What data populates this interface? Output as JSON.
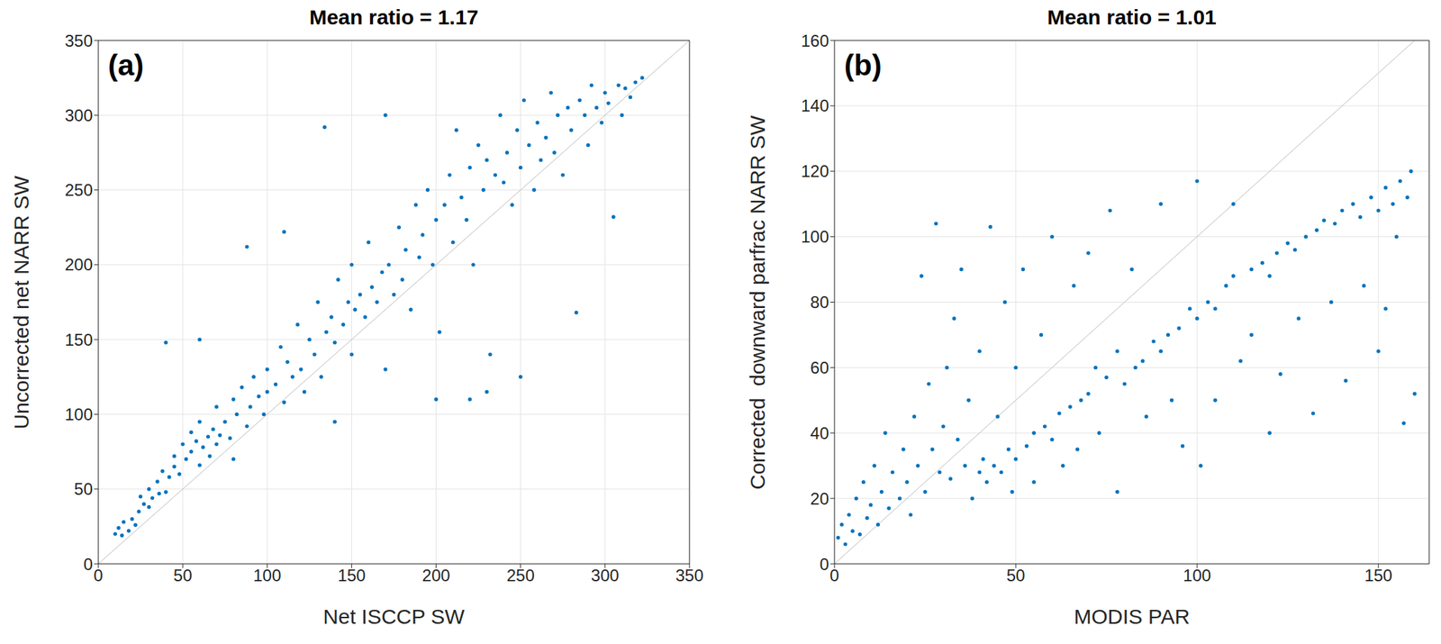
{
  "chart_data": [
    {
      "type": "scatter",
      "title": "Mean ratio = 1.17",
      "annotations": [
        "(a)"
      ],
      "x_label": "Net ISCCP SW",
      "y_label": "Uncorrected net NARR SW",
      "color": "#0072bd",
      "marker": "circle",
      "grid": true,
      "xlim": [
        0,
        350
      ],
      "ylim": [
        0,
        350
      ],
      "xticks": [
        0,
        50,
        100,
        150,
        200,
        250,
        300,
        350
      ],
      "yticks": [
        0,
        50,
        100,
        150,
        200,
        250,
        300,
        350
      ],
      "x": [
        10,
        12,
        14,
        15,
        18,
        20,
        22,
        24,
        25,
        27,
        30,
        30,
        32,
        35,
        36,
        38,
        40,
        42,
        45,
        45,
        48,
        50,
        52,
        55,
        55,
        58,
        60,
        60,
        62,
        65,
        66,
        68,
        70,
        70,
        72,
        75,
        78,
        80,
        80,
        82,
        85,
        88,
        90,
        92,
        95,
        98,
        100,
        100,
        105,
        108,
        110,
        112,
        115,
        118,
        120,
        122,
        125,
        128,
        130,
        132,
        135,
        138,
        140,
        142,
        145,
        148,
        150,
        150,
        152,
        155,
        158,
        160,
        162,
        165,
        168,
        170,
        172,
        175,
        178,
        180,
        182,
        185,
        188,
        190,
        192,
        195,
        198,
        200,
        202,
        205,
        208,
        210,
        212,
        215,
        218,
        220,
        222,
        225,
        228,
        230,
        232,
        235,
        238,
        240,
        242,
        245,
        248,
        250,
        252,
        255,
        258,
        260,
        262,
        265,
        268,
        270,
        272,
        275,
        278,
        280,
        283,
        285,
        288,
        290,
        292,
        295,
        298,
        300,
        302,
        305,
        308,
        310,
        312,
        315,
        318,
        322,
        134,
        170,
        60,
        40,
        88,
        110,
        200,
        220,
        140,
        250,
        230
      ],
      "y": [
        20,
        24,
        19,
        28,
        22,
        30,
        26,
        35,
        45,
        40,
        38,
        50,
        44,
        55,
        47,
        62,
        48,
        58,
        65,
        72,
        60,
        80,
        70,
        75,
        88,
        82,
        66,
        95,
        78,
        85,
        72,
        90,
        80,
        105,
        86,
        95,
        84,
        110,
        70,
        100,
        118,
        92,
        105,
        125,
        112,
        100,
        130,
        115,
        120,
        145,
        108,
        135,
        125,
        160,
        130,
        115,
        150,
        140,
        175,
        125,
        155,
        165,
        148,
        190,
        160,
        175,
        140,
        200,
        170,
        180,
        165,
        215,
        185,
        175,
        195,
        130,
        200,
        180,
        225,
        190,
        210,
        170,
        240,
        205,
        220,
        250,
        200,
        230,
        155,
        240,
        260,
        215,
        290,
        245,
        230,
        265,
        200,
        280,
        250,
        270,
        140,
        260,
        300,
        255,
        275,
        240,
        290,
        265,
        310,
        280,
        250,
        295,
        270,
        285,
        315,
        275,
        300,
        260,
        305,
        290,
        168,
        310,
        300,
        280,
        320,
        305,
        295,
        315,
        308,
        232,
        320,
        300,
        318,
        312,
        322,
        325,
        292,
        300,
        150,
        148,
        212,
        222,
        110,
        110,
        95,
        125,
        115
      ]
    },
    {
      "type": "scatter",
      "title": "Mean ratio = 1.01",
      "annotations": [
        "(b)"
      ],
      "x_label": "MODIS PAR",
      "y_label": "Corrected  downward parfrac NARR SW",
      "color": "#0072bd",
      "marker": "circle",
      "grid": true,
      "xlim": [
        0,
        164
      ],
      "ylim": [
        0,
        160
      ],
      "xticks": [
        0,
        50,
        100,
        150
      ],
      "yticks": [
        0,
        20,
        40,
        60,
        80,
        100,
        120,
        140,
        160
      ],
      "x": [
        1,
        2,
        3,
        4,
        5,
        6,
        7,
        8,
        9,
        10,
        11,
        12,
        13,
        14,
        15,
        16,
        18,
        19,
        20,
        21,
        22,
        23,
        24,
        25,
        26,
        27,
        28,
        29,
        30,
        31,
        32,
        33,
        34,
        35,
        36,
        37,
        38,
        40,
        40,
        41,
        42,
        43,
        44,
        45,
        46,
        47,
        48,
        49,
        50,
        50,
        52,
        53,
        55,
        55,
        57,
        58,
        60,
        60,
        62,
        63,
        65,
        66,
        67,
        68,
        70,
        70,
        72,
        73,
        75,
        76,
        78,
        78,
        80,
        82,
        83,
        85,
        86,
        88,
        90,
        90,
        92,
        93,
        95,
        96,
        98,
        100,
        100,
        101,
        103,
        105,
        105,
        108,
        110,
        110,
        112,
        115,
        115,
        118,
        120,
        120,
        122,
        123,
        125,
        127,
        128,
        130,
        132,
        133,
        135,
        137,
        138,
        140,
        141,
        143,
        145,
        146,
        148,
        150,
        150,
        152,
        154,
        155,
        156,
        157,
        158,
        159,
        152,
        160
      ],
      "y": [
        8,
        12,
        6,
        15,
        10,
        20,
        9,
        25,
        14,
        18,
        30,
        12,
        22,
        40,
        17,
        28,
        20,
        35,
        25,
        15,
        45,
        30,
        88,
        22,
        55,
        35,
        104,
        28,
        42,
        60,
        26,
        75,
        38,
        90,
        30,
        50,
        20,
        28,
        65,
        32,
        25,
        103,
        30,
        45,
        28,
        80,
        35,
        22,
        32,
        60,
        90,
        36,
        40,
        25,
        70,
        42,
        38,
        100,
        46,
        30,
        48,
        85,
        35,
        50,
        52,
        95,
        60,
        40,
        57,
        108,
        65,
        22,
        55,
        90,
        60,
        62,
        45,
        68,
        65,
        110,
        70,
        50,
        72,
        36,
        78,
        75,
        117,
        30,
        80,
        78,
        50,
        85,
        88,
        110,
        62,
        90,
        70,
        92,
        88,
        40,
        95,
        58,
        98,
        96,
        75,
        100,
        46,
        102,
        105,
        80,
        104,
        108,
        56,
        110,
        106,
        85,
        112,
        108,
        65,
        115,
        110,
        100,
        117,
        43,
        112,
        120,
        78,
        52
      ]
    }
  ]
}
